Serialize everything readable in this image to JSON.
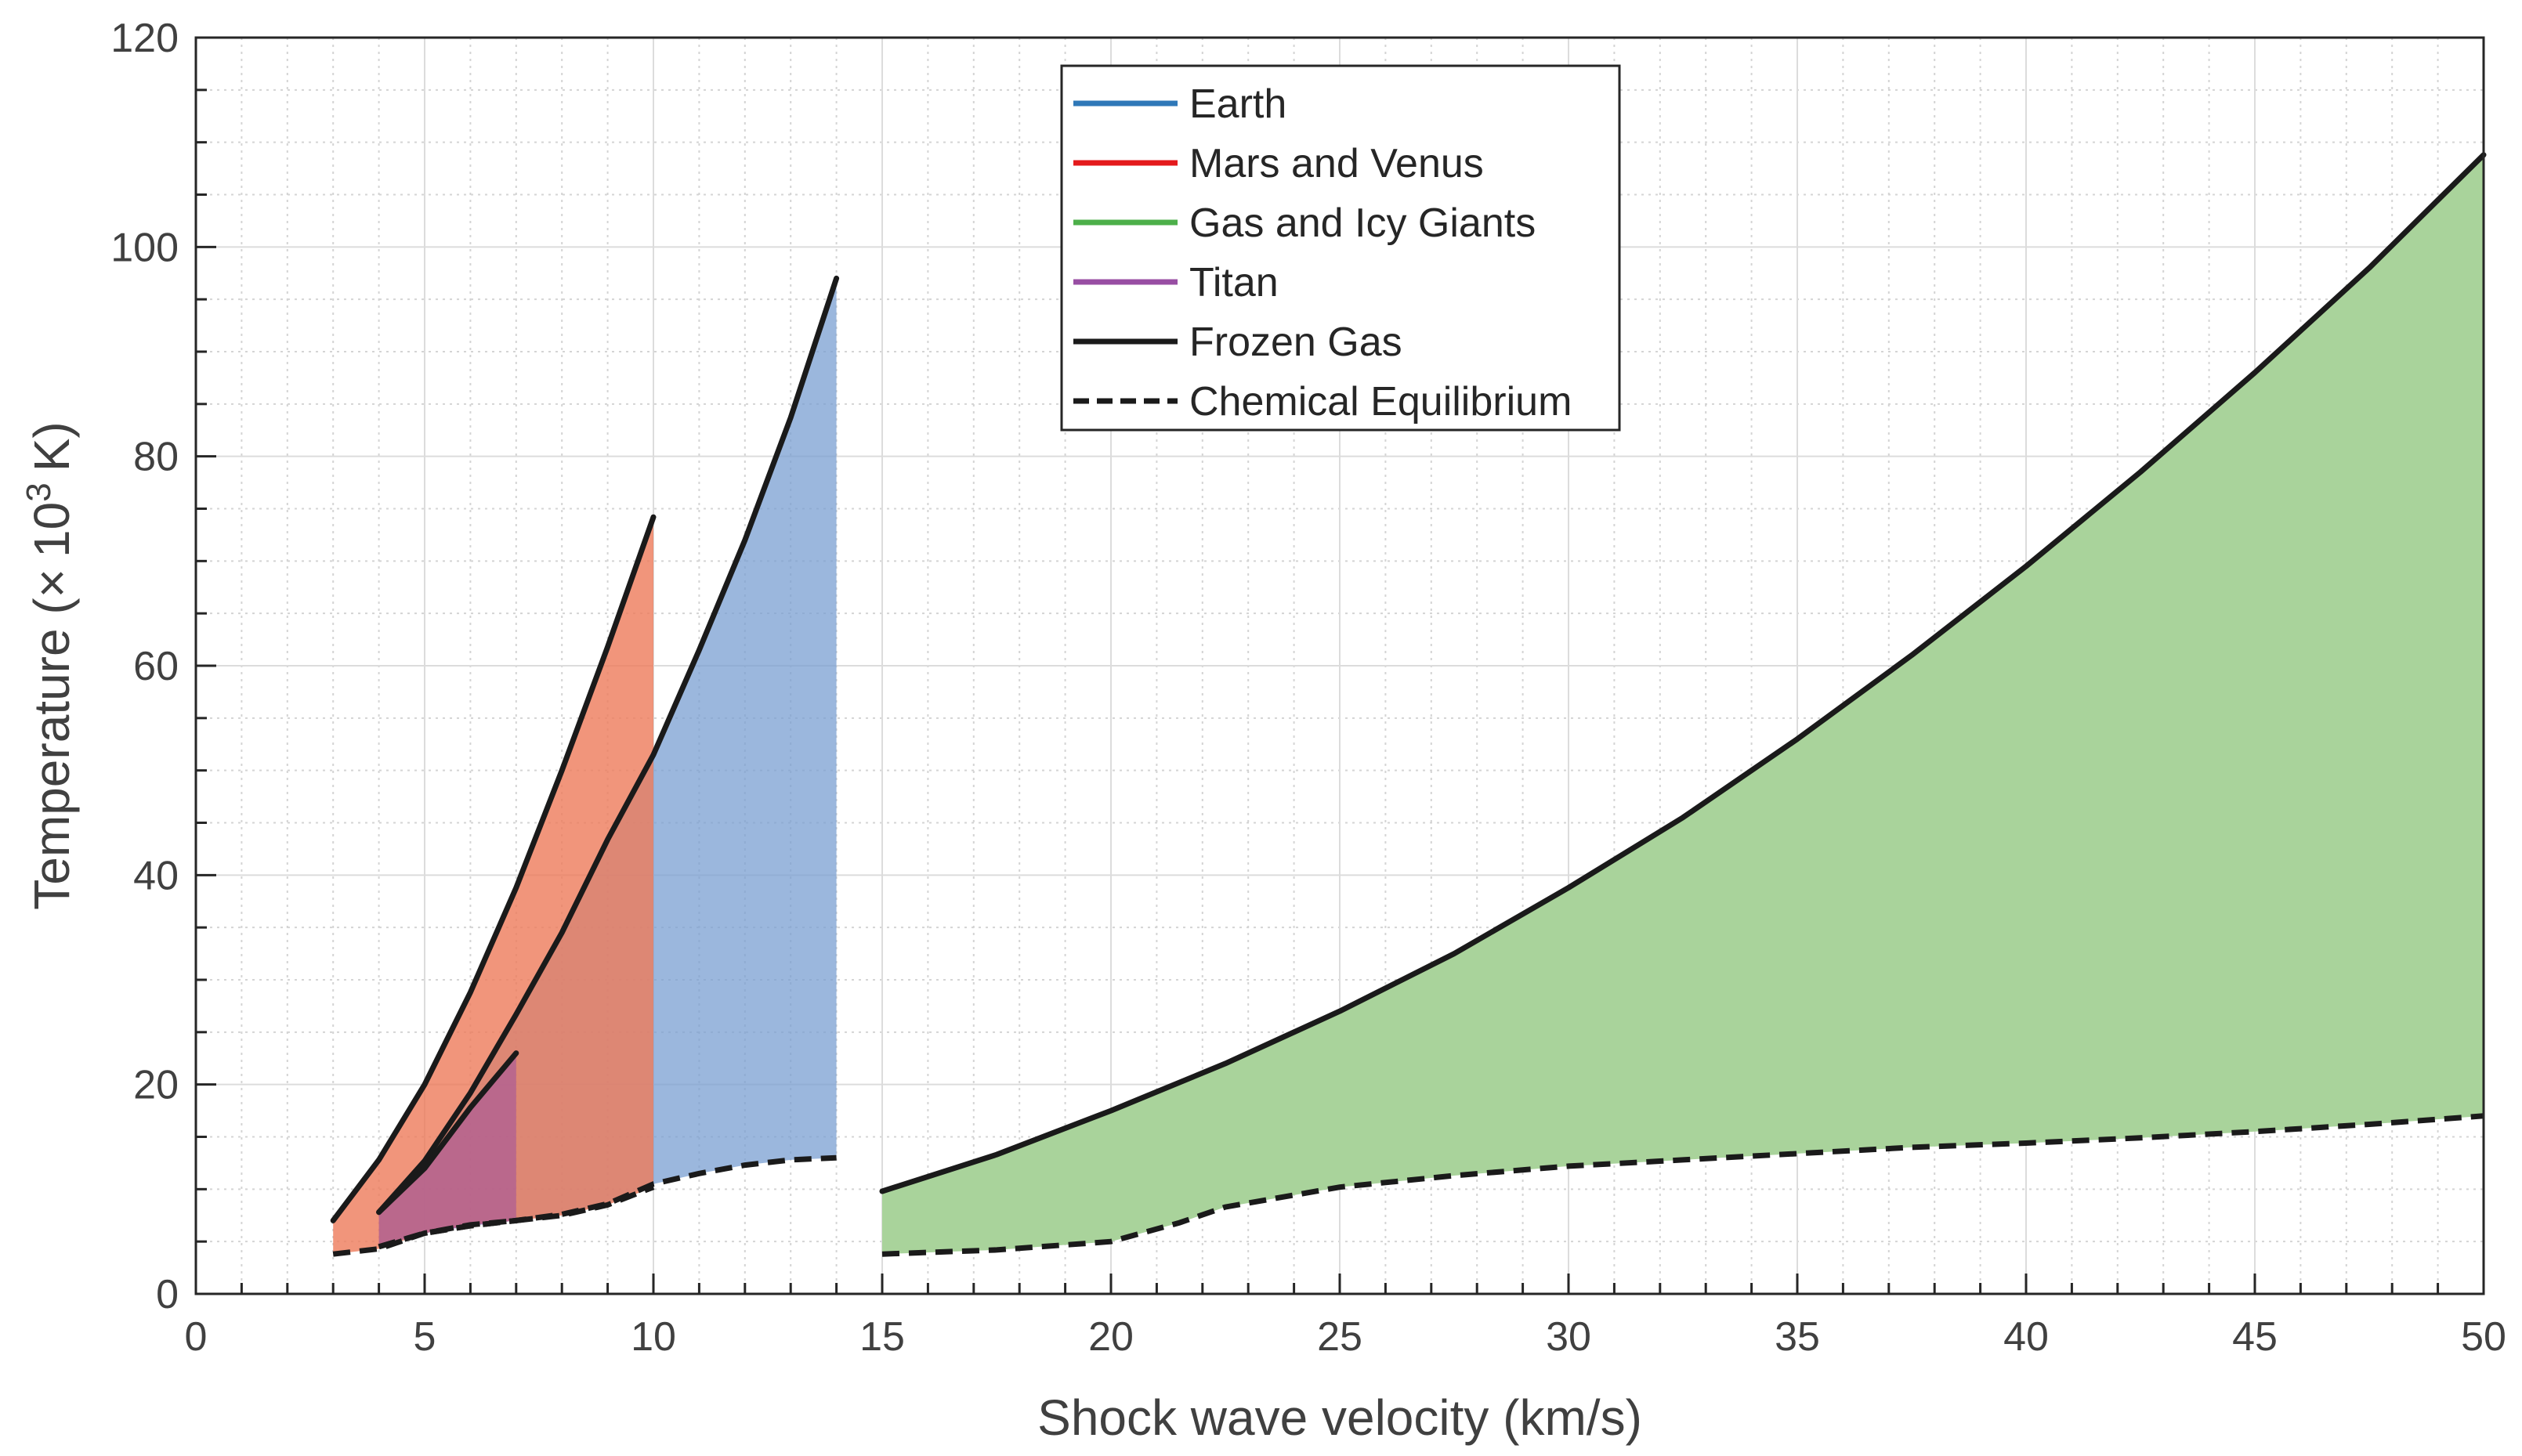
{
  "chart_data": {
    "type": "area",
    "xlabel": "Shock wave velocity (km/s)",
    "ylabel_main": "Temperature (",
    "ylabel_times": "×",
    "ylabel_ten": "10",
    "ylabel_exp": "3",
    "ylabel_unit": "K)",
    "xlim": [
      0,
      50
    ],
    "ylim": [
      0,
      120
    ],
    "xticks": [
      0,
      5,
      10,
      15,
      20,
      25,
      30,
      35,
      40,
      45,
      50
    ],
    "yticks": [
      0,
      20,
      40,
      60,
      80,
      100,
      120
    ],
    "grid": true,
    "legend_position": "top-center",
    "legend": [
      {
        "label": "Earth",
        "style": "solid",
        "color": "#2f78b8"
      },
      {
        "label": "Mars and Venus",
        "style": "solid",
        "color": "#e41a1c"
      },
      {
        "label": "Gas and Icy Giants",
        "style": "solid",
        "color": "#4daf4a"
      },
      {
        "label": "Titan",
        "style": "solid",
        "color": "#984ea3"
      },
      {
        "label": "Frozen Gas",
        "style": "solid",
        "color": "#1a1a1a"
      },
      {
        "label": "Chemical Equilibrium",
        "style": "dashed",
        "color": "#1a1a1a"
      }
    ],
    "series": [
      {
        "name": "Earth",
        "fill": "#7a9fd2",
        "fill_opacity": 0.75,
        "frozen": [
          [
            4,
            7.8
          ],
          [
            5,
            12.7
          ],
          [
            6,
            19.2
          ],
          [
            7,
            26.7
          ],
          [
            8,
            34.5
          ],
          [
            9,
            43.4
          ],
          [
            10,
            51.5
          ],
          [
            11,
            61.5
          ],
          [
            12,
            72.0
          ],
          [
            13,
            83.7
          ],
          [
            14,
            97
          ]
        ],
        "equilibrium": [
          [
            4,
            4.5
          ],
          [
            5,
            5.8
          ],
          [
            6,
            6.5
          ],
          [
            7,
            7.0
          ],
          [
            8,
            7.6
          ],
          [
            9,
            8.6
          ],
          [
            10,
            10.5
          ],
          [
            11,
            11.5
          ],
          [
            12,
            12.3
          ],
          [
            13,
            12.8
          ],
          [
            14,
            13.0
          ]
        ]
      },
      {
        "name": "Mars and Venus",
        "fill": "#ee7a5a",
        "fill_opacity": 0.8,
        "frozen": [
          [
            3,
            7.0
          ],
          [
            4,
            12.8
          ],
          [
            5,
            20.0
          ],
          [
            6,
            28.8
          ],
          [
            7,
            38.8
          ],
          [
            8,
            50.0
          ],
          [
            9,
            61.8
          ],
          [
            10,
            74.2
          ]
        ],
        "equilibrium": [
          [
            3,
            3.8
          ],
          [
            4,
            4.3
          ],
          [
            5,
            5.8
          ],
          [
            6,
            6.6
          ],
          [
            7,
            7.0
          ],
          [
            8,
            7.5
          ],
          [
            9,
            8.5
          ],
          [
            10,
            10.2
          ]
        ]
      },
      {
        "name": "Titan",
        "fill": "#9c4fa0",
        "fill_opacity": 0.55,
        "frozen": [
          [
            4,
            7.8
          ],
          [
            5,
            12.0
          ],
          [
            6,
            17.8
          ],
          [
            7,
            23.0
          ]
        ],
        "equilibrium": [
          [
            4,
            4.5
          ],
          [
            5,
            5.8
          ],
          [
            6,
            6.5
          ],
          [
            7,
            7.0
          ]
        ]
      },
      {
        "name": "Gas and Icy Giants",
        "fill": "#a9d39b",
        "fill_opacity": 1,
        "frozen": [
          [
            15,
            9.8
          ],
          [
            17.5,
            13.3
          ],
          [
            20,
            17.5
          ],
          [
            22.5,
            22.0
          ],
          [
            25,
            27.0
          ],
          [
            27.5,
            32.5
          ],
          [
            30,
            38.8
          ],
          [
            32.5,
            45.5
          ],
          [
            35,
            53.0
          ],
          [
            37.5,
            61.0
          ],
          [
            40,
            69.5
          ],
          [
            42.5,
            78.5
          ],
          [
            45,
            88.0
          ],
          [
            47.5,
            98.0
          ],
          [
            50,
            108.8
          ]
        ],
        "equilibrium": [
          [
            15,
            3.8
          ],
          [
            17.5,
            4.2
          ],
          [
            20,
            5.0
          ],
          [
            21.5,
            6.8
          ],
          [
            22.5,
            8.3
          ],
          [
            25,
            10.2
          ],
          [
            27.5,
            11.3
          ],
          [
            30,
            12.2
          ],
          [
            32.5,
            12.8
          ],
          [
            35,
            13.4
          ],
          [
            37.5,
            14.0
          ],
          [
            40,
            14.4
          ],
          [
            42.5,
            14.9
          ],
          [
            45,
            15.5
          ],
          [
            47.5,
            16.2
          ],
          [
            50,
            17.0
          ]
        ]
      }
    ]
  }
}
